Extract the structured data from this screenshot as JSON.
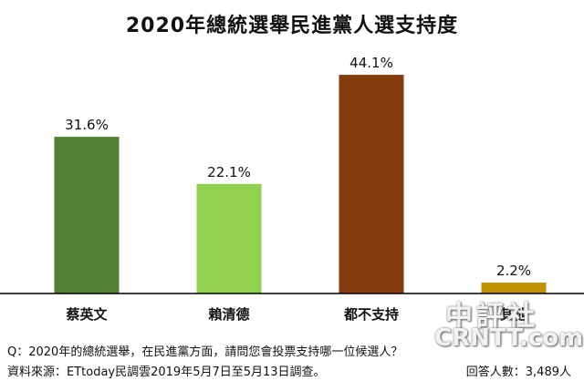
{
  "chart_data": {
    "type": "bar",
    "title": "2020年總統選舉民進黨人選支持度",
    "categories": [
      "蔡英文",
      "賴清德",
      "都不支持",
      "其他"
    ],
    "values": [
      31.6,
      22.1,
      44.1,
      2.2
    ],
    "value_labels": [
      "31.6%",
      "22.1%",
      "44.1%",
      "2.2%"
    ],
    "colors": [
      "#548235",
      "#92d050",
      "#843c0c",
      "#bf9000"
    ],
    "ylim": [
      0,
      50
    ],
    "grid": false,
    "legend": "none"
  },
  "footer": {
    "question": "Q：2020年的總統選舉，在民進黨方面，請問您會投票支持哪一位候選人？",
    "source": "資料來源：ETtoday民調雲2019年5月7日至5月13日調查。",
    "respondents": "回答人數：3,489人"
  },
  "watermark": {
    "cn": "中評社",
    "en": "CRNTT.com"
  }
}
